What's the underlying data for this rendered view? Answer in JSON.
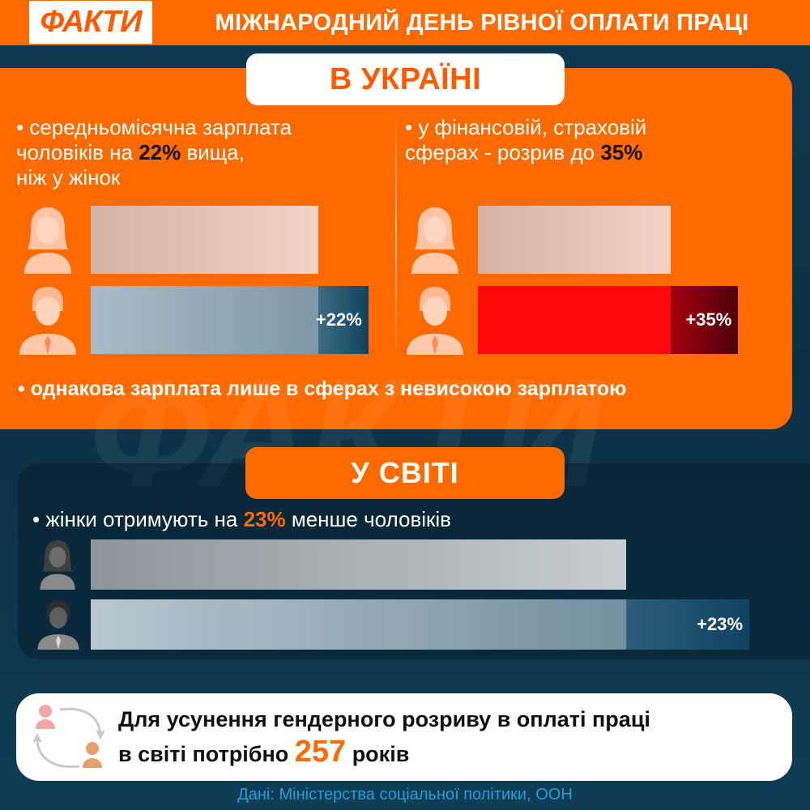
{
  "header": {
    "logo": "ФАКТИ",
    "title": "МІЖНАРОДНИЙ ДЕНЬ РІВНОЇ ОПЛАТИ ПРАЦІ"
  },
  "watermark": "ФАКТИ",
  "ukraine": {
    "heading": "В УКРАЇНІ",
    "left_stat": {
      "line1": "• середньомісячна зарплата",
      "line2_before": "чоловіків на ",
      "line2_highlight": "22%",
      "line2_after": " вища,",
      "line3": "ніж у жінок"
    },
    "right_stat": {
      "line1": "• у фінансовій, страховій",
      "line2_before": "сферах - розрив до ",
      "line2_highlight": "35%"
    },
    "bottom_note": "• однакова зарплата лише в сферах з невисокою зарплатою"
  },
  "world": {
    "heading": "У СВІТІ",
    "stat_before": "• жінки отримують на ",
    "stat_highlight": "23%",
    "stat_after": " менше чоловіків"
  },
  "bottom": {
    "line1": "Для усунення гендерного розриву в оплаті праці",
    "line2_before": "в світі потрібно ",
    "line2_number": "257",
    "line2_after": " років"
  },
  "source": "Дані: Міністерства соціальної політики, ООН",
  "chart_data": [
    {
      "type": "bar",
      "orientation": "horizontal",
      "series": [
        {
          "values": [
            100
          ]
        },
        {
          "values": [
            122
          ]
        }
      ],
      "data_labels": [
        "",
        "+22%"
      ],
      "colors": {
        "women": "#f6d2c6",
        "men": "#8ea6b5",
        "gap": "#10435f"
      }
    },
    {
      "type": "bar",
      "orientation": "horizontal",
      "series": [
        {
          "values": [
            100
          ]
        },
        {
          "values": [
            135
          ]
        }
      ],
      "data_labels": [
        "",
        "+35%"
      ],
      "colors": {
        "women": "#f6d2c6",
        "men": "#ff0a0a",
        "gap": "#4e0008"
      }
    },
    {
      "type": "bar",
      "orientation": "horizontal",
      "series": [
        {
          "values": [
            100
          ]
        },
        {
          "values": [
            123
          ]
        }
      ],
      "data_labels": [
        "",
        "+23%"
      ],
      "colors": {
        "women": "#c7cdd0",
        "men": "#94a9b6",
        "gap": "#0f4361"
      }
    }
  ]
}
